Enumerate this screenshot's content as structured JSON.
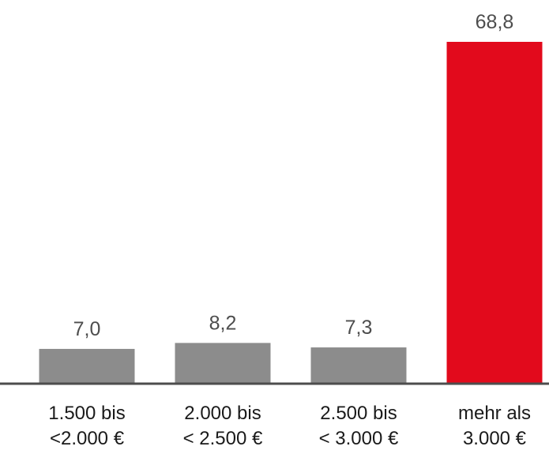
{
  "chart_data": {
    "type": "bar",
    "categories": [
      [
        "1.500 bis",
        "<2.000 €"
      ],
      [
        "2.000 bis",
        "< 2.500 €"
      ],
      [
        "2.500 bis",
        "< 3.000 €"
      ],
      [
        "mehr als",
        "3.000 €"
      ]
    ],
    "values": [
      7.0,
      8.2,
      7.3,
      68.8
    ],
    "value_labels": [
      "7,0",
      "8,2",
      "7,3",
      "68,8"
    ],
    "bar_colors": [
      "#8c8c8c",
      "#8c8c8c",
      "#8c8c8c",
      "#e20a1c"
    ],
    "axis_color": "#4d4d4d",
    "title": "",
    "xlabel": "",
    "ylabel": "",
    "ylim": [
      0,
      68.8
    ],
    "grid": false,
    "legend": "none"
  }
}
